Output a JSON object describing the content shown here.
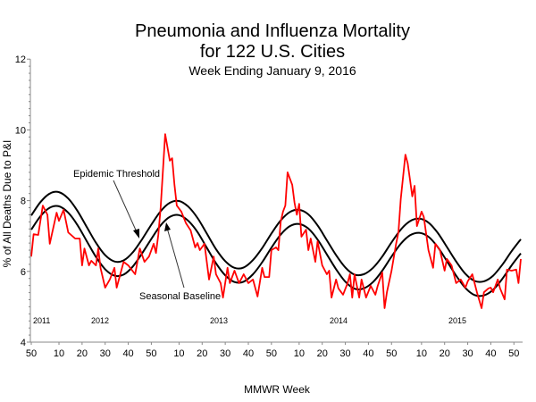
{
  "chart_data": {
    "type": "line",
    "title": "Pneumonia and Influenza Mortality",
    "title_line2": "for 122 U.S. Cities",
    "subtitle": "Week Ending  January 9, 2016",
    "xlabel": "MMWR Week",
    "ylabel": "% of All Deaths Due to P&I",
    "ylim": [
      4,
      12
    ],
    "y_ticks": [
      "4",
      "6",
      "8",
      "10",
      "12"
    ],
    "xlim": [
      "2011-50",
      "2016-01"
    ],
    "x_ticks": [
      {
        "week": "2011-50",
        "label": "50"
      },
      {
        "week": "2012-10",
        "label": "10"
      },
      {
        "week": "2012-20",
        "label": "20"
      },
      {
        "week": "2012-30",
        "label": "30"
      },
      {
        "week": "2012-40",
        "label": "40"
      },
      {
        "week": "2012-50",
        "label": "50"
      },
      {
        "week": "2013-10",
        "label": "10"
      },
      {
        "week": "2013-20",
        "label": "20"
      },
      {
        "week": "2013-30",
        "label": "30"
      },
      {
        "week": "2013-40",
        "label": "40"
      },
      {
        "week": "2013-50",
        "label": "50"
      },
      {
        "week": "2014-10",
        "label": "10"
      },
      {
        "week": "2014-20",
        "label": "20"
      },
      {
        "week": "2014-30",
        "label": "30"
      },
      {
        "week": "2014-40",
        "label": "40"
      },
      {
        "week": "2014-50",
        "label": "50"
      },
      {
        "week": "2015-10",
        "label": "10"
      },
      {
        "week": "2015-20",
        "label": "20"
      },
      {
        "week": "2015-30",
        "label": "30"
      },
      {
        "week": "2015-40",
        "label": "40"
      },
      {
        "week": "2015-50",
        "label": "50"
      }
    ],
    "year_labels": [
      "2011",
      "2012",
      "2013",
      "2014",
      "2015"
    ],
    "grid": false,
    "legend": "none",
    "annotations": [
      {
        "text": "Epidemic Threshold",
        "points_to": "threshold"
      },
      {
        "text": "Seasonal Baseline",
        "points_to": "baseline"
      }
    ],
    "series": [
      {
        "id": "observed",
        "color": "#ff0000",
        "points": [
          [
            "2011-50",
            6.42
          ],
          [
            "2011-51",
            7.05
          ],
          [
            "2012-01",
            7.03
          ],
          [
            "2012-03",
            7.86
          ],
          [
            "2012-05",
            7.6
          ],
          [
            "2012-06",
            6.78
          ],
          [
            "2012-09",
            7.66
          ],
          [
            "2012-10",
            7.43
          ],
          [
            "2012-12",
            7.74
          ],
          [
            "2012-14",
            7.1
          ],
          [
            "2012-17",
            6.93
          ],
          [
            "2012-19",
            6.93
          ],
          [
            "2012-20",
            6.17
          ],
          [
            "2012-21",
            6.65
          ],
          [
            "2012-23",
            6.17
          ],
          [
            "2012-24",
            6.3
          ],
          [
            "2012-26",
            6.17
          ],
          [
            "2012-27",
            6.65
          ],
          [
            "2012-28",
            6.1
          ],
          [
            "2012-30",
            5.54
          ],
          [
            "2012-32",
            5.77
          ],
          [
            "2012-34",
            6.1
          ],
          [
            "2012-35",
            5.54
          ],
          [
            "2012-38",
            6.27
          ],
          [
            "2012-40",
            6.17
          ],
          [
            "2012-43",
            5.92
          ],
          [
            "2012-45",
            6.65
          ],
          [
            "2012-47",
            6.27
          ],
          [
            "2012-49",
            6.42
          ],
          [
            "2012-51",
            6.78
          ],
          [
            "2012-52",
            6.52
          ],
          [
            "2013-01",
            7.03
          ],
          [
            "2013-02",
            7.79
          ],
          [
            "2013-04",
            9.88
          ],
          [
            "2013-06",
            9.13
          ],
          [
            "2013-07",
            9.2
          ],
          [
            "2013-08",
            8.45
          ],
          [
            "2013-09",
            7.86
          ],
          [
            "2013-11",
            7.69
          ],
          [
            "2013-13",
            7.36
          ],
          [
            "2013-15",
            7.16
          ],
          [
            "2013-17",
            6.68
          ],
          [
            "2013-18",
            6.8
          ],
          [
            "2013-19",
            6.6
          ],
          [
            "2013-21",
            6.78
          ],
          [
            "2013-23",
            5.77
          ],
          [
            "2013-25",
            6.42
          ],
          [
            "2013-26",
            5.92
          ],
          [
            "2013-28",
            5.67
          ],
          [
            "2013-29",
            5.26
          ],
          [
            "2013-31",
            6.1
          ],
          [
            "2013-32",
            5.67
          ],
          [
            "2013-34",
            6.02
          ],
          [
            "2013-36",
            5.67
          ],
          [
            "2013-38",
            5.92
          ],
          [
            "2013-40",
            5.67
          ],
          [
            "2013-42",
            5.77
          ],
          [
            "2013-44",
            5.29
          ],
          [
            "2013-46",
            6.1
          ],
          [
            "2013-47",
            5.84
          ],
          [
            "2013-49",
            5.84
          ],
          [
            "2013-50",
            6.6
          ],
          [
            "2013-52",
            6.68
          ],
          [
            "2014-01",
            6.6
          ],
          [
            "2014-02",
            7.4
          ],
          [
            "2014-03",
            7.69
          ],
          [
            "2014-04",
            7.86
          ],
          [
            "2014-05",
            8.8
          ],
          [
            "2014-07",
            8.45
          ],
          [
            "2014-08",
            7.94
          ],
          [
            "2014-09",
            7.6
          ],
          [
            "2014-10",
            7.91
          ],
          [
            "2014-11",
            6.98
          ],
          [
            "2014-13",
            7.18
          ],
          [
            "2014-14",
            6.6
          ],
          [
            "2014-15",
            6.93
          ],
          [
            "2014-17",
            6.27
          ],
          [
            "2014-18",
            6.85
          ],
          [
            "2014-20",
            6.17
          ],
          [
            "2014-22",
            5.92
          ],
          [
            "2014-23",
            6.02
          ],
          [
            "2014-24",
            5.26
          ],
          [
            "2014-26",
            5.77
          ],
          [
            "2014-27",
            5.52
          ],
          [
            "2014-29",
            5.34
          ],
          [
            "2014-31",
            5.67
          ],
          [
            "2014-32",
            5.92
          ],
          [
            "2014-33",
            5.26
          ],
          [
            "2014-34",
            5.92
          ],
          [
            "2014-36",
            5.26
          ],
          [
            "2014-37",
            5.77
          ],
          [
            "2014-39",
            5.26
          ],
          [
            "2014-41",
            5.59
          ],
          [
            "2014-43",
            5.34
          ],
          [
            "2014-44",
            5.59
          ],
          [
            "2014-46",
            5.97
          ],
          [
            "2014-47",
            4.96
          ],
          [
            "2014-48",
            5.41
          ],
          [
            "2014-50",
            6.02
          ],
          [
            "2014-52",
            6.78
          ],
          [
            "2014-53",
            7.1
          ],
          [
            "2015-01",
            8.04
          ],
          [
            "2015-03",
            9.3
          ],
          [
            "2015-04",
            9.05
          ],
          [
            "2015-05",
            8.6
          ],
          [
            "2015-06",
            8.12
          ],
          [
            "2015-07",
            8.42
          ],
          [
            "2015-08",
            7.28
          ],
          [
            "2015-10",
            7.69
          ],
          [
            "2015-11",
            7.54
          ],
          [
            "2015-13",
            6.6
          ],
          [
            "2015-15",
            6.1
          ],
          [
            "2015-16",
            6.78
          ],
          [
            "2015-18",
            6.6
          ],
          [
            "2015-20",
            6.02
          ],
          [
            "2015-21",
            6.35
          ],
          [
            "2015-23",
            6.17
          ],
          [
            "2015-25",
            5.67
          ],
          [
            "2015-27",
            5.77
          ],
          [
            "2015-29",
            5.54
          ],
          [
            "2015-30",
            5.72
          ],
          [
            "2015-32",
            5.92
          ],
          [
            "2015-34",
            5.41
          ],
          [
            "2015-36",
            4.96
          ],
          [
            "2015-37",
            5.41
          ],
          [
            "2015-39",
            5.52
          ],
          [
            "2015-40",
            5.54
          ],
          [
            "2015-41",
            5.41
          ],
          [
            "2015-43",
            5.77
          ],
          [
            "2015-44",
            5.52
          ],
          [
            "2015-46",
            5.21
          ],
          [
            "2015-47",
            6.05
          ],
          [
            "2015-49",
            6.02
          ],
          [
            "2015-51",
            6.05
          ],
          [
            "2015-52",
            5.67
          ],
          [
            "2016-01",
            6.35
          ]
        ]
      },
      {
        "id": "threshold",
        "name": "Epidemic Threshold",
        "color": "#000000",
        "points": [
          [
            "2011-50",
            7.58
          ],
          [
            "2012-02",
            7.96
          ],
          [
            "2012-06",
            8.2
          ],
          [
            "2012-10",
            8.24
          ],
          [
            "2012-14",
            8.06
          ],
          [
            "2012-18",
            7.71
          ],
          [
            "2012-22",
            7.26
          ],
          [
            "2012-26",
            6.81
          ],
          [
            "2012-30",
            6.46
          ],
          [
            "2012-34",
            6.28
          ],
          [
            "2012-38",
            6.31
          ],
          [
            "2012-42",
            6.54
          ],
          [
            "2012-46",
            6.91
          ],
          [
            "2012-50",
            7.32
          ],
          [
            "2013-02",
            7.7
          ],
          [
            "2013-06",
            7.94
          ],
          [
            "2013-10",
            7.99
          ],
          [
            "2013-14",
            7.83
          ],
          [
            "2013-18",
            7.51
          ],
          [
            "2013-22",
            7.07
          ],
          [
            "2013-26",
            6.63
          ],
          [
            "2013-30",
            6.29
          ],
          [
            "2013-34",
            6.1
          ],
          [
            "2013-38",
            6.11
          ],
          [
            "2013-42",
            6.32
          ],
          [
            "2013-46",
            6.66
          ],
          [
            "2013-50",
            7.07
          ],
          [
            "2014-02",
            7.44
          ],
          [
            "2014-06",
            7.68
          ],
          [
            "2014-10",
            7.74
          ],
          [
            "2014-14",
            7.61
          ],
          [
            "2014-18",
            7.3
          ],
          [
            "2014-22",
            6.88
          ],
          [
            "2014-26",
            6.46
          ],
          [
            "2014-30",
            6.11
          ],
          [
            "2014-34",
            5.91
          ],
          [
            "2014-38",
            5.92
          ],
          [
            "2014-42",
            6.1
          ],
          [
            "2014-46",
            6.42
          ],
          [
            "2014-50",
            6.82
          ],
          [
            "2015-01",
            7.18
          ],
          [
            "2015-05",
            7.42
          ],
          [
            "2015-09",
            7.49
          ],
          [
            "2015-13",
            7.38
          ],
          [
            "2015-17",
            7.09
          ],
          [
            "2015-21",
            6.69
          ],
          [
            "2015-25",
            6.28
          ],
          [
            "2015-29",
            5.93
          ],
          [
            "2015-33",
            5.73
          ],
          [
            "2015-37",
            5.72
          ],
          [
            "2015-41",
            5.88
          ],
          [
            "2015-45",
            6.19
          ],
          [
            "2015-49",
            6.57
          ],
          [
            "2016-01",
            6.91
          ]
        ]
      },
      {
        "id": "baseline",
        "name": "Seasonal Baseline",
        "color": "#000000",
        "points": [
          [
            "2011-50",
            7.18
          ],
          [
            "2012-02",
            7.56
          ],
          [
            "2012-06",
            7.8
          ],
          [
            "2012-10",
            7.84
          ],
          [
            "2012-14",
            7.66
          ],
          [
            "2012-18",
            7.31
          ],
          [
            "2012-22",
            6.86
          ],
          [
            "2012-26",
            6.41
          ],
          [
            "2012-30",
            6.06
          ],
          [
            "2012-34",
            5.88
          ],
          [
            "2012-38",
            5.91
          ],
          [
            "2012-42",
            6.14
          ],
          [
            "2012-46",
            6.51
          ],
          [
            "2012-50",
            6.92
          ],
          [
            "2013-02",
            7.3
          ],
          [
            "2013-06",
            7.54
          ],
          [
            "2013-10",
            7.59
          ],
          [
            "2013-14",
            7.43
          ],
          [
            "2013-18",
            7.11
          ],
          [
            "2013-22",
            6.67
          ],
          [
            "2013-26",
            6.23
          ],
          [
            "2013-30",
            5.89
          ],
          [
            "2013-34",
            5.7
          ],
          [
            "2013-38",
            5.71
          ],
          [
            "2013-42",
            5.92
          ],
          [
            "2013-46",
            6.26
          ],
          [
            "2013-50",
            6.67
          ],
          [
            "2014-02",
            7.04
          ],
          [
            "2014-06",
            7.28
          ],
          [
            "2014-10",
            7.34
          ],
          [
            "2014-14",
            7.21
          ],
          [
            "2014-18",
            6.9
          ],
          [
            "2014-22",
            6.48
          ],
          [
            "2014-26",
            6.06
          ],
          [
            "2014-30",
            5.71
          ],
          [
            "2014-34",
            5.51
          ],
          [
            "2014-38",
            5.52
          ],
          [
            "2014-42",
            5.7
          ],
          [
            "2014-46",
            6.02
          ],
          [
            "2014-50",
            6.42
          ],
          [
            "2015-01",
            6.78
          ],
          [
            "2015-05",
            7.02
          ],
          [
            "2015-09",
            7.09
          ],
          [
            "2015-13",
            6.98
          ],
          [
            "2015-17",
            6.69
          ],
          [
            "2015-21",
            6.29
          ],
          [
            "2015-25",
            5.88
          ],
          [
            "2015-29",
            5.53
          ],
          [
            "2015-33",
            5.33
          ],
          [
            "2015-37",
            5.32
          ],
          [
            "2015-41",
            5.48
          ],
          [
            "2015-45",
            5.79
          ],
          [
            "2015-49",
            6.17
          ],
          [
            "2016-01",
            6.51
          ]
        ]
      }
    ]
  }
}
